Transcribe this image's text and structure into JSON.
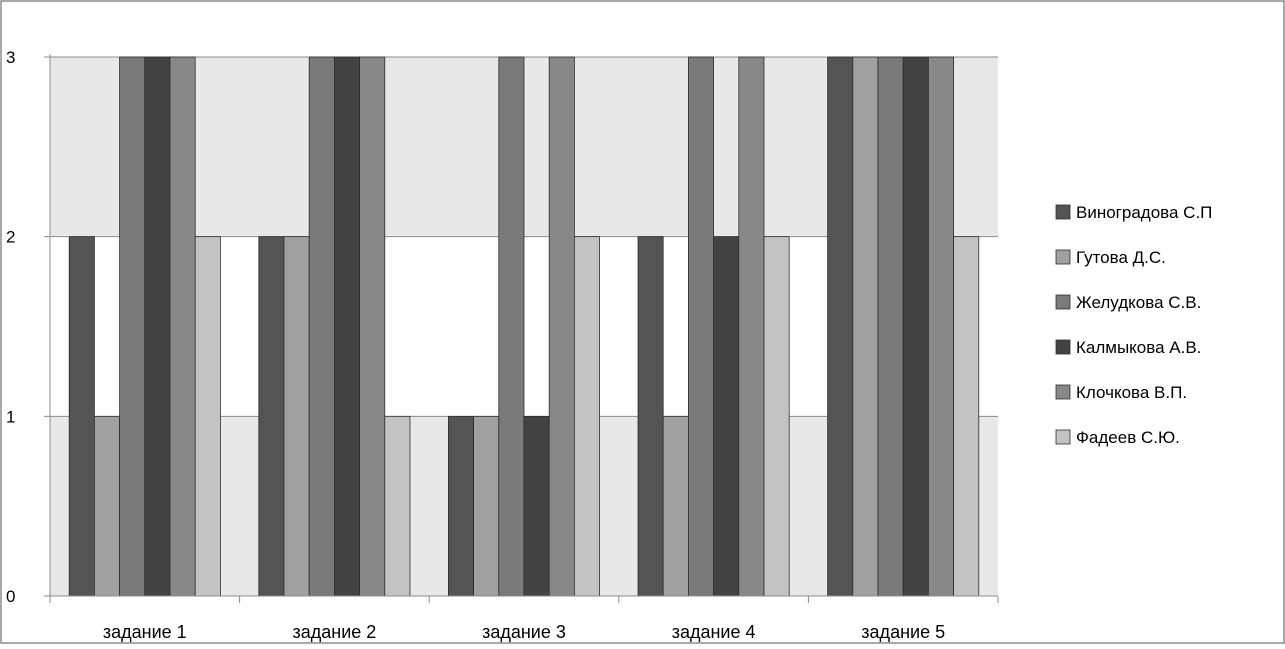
{
  "chart_data": {
    "type": "bar",
    "categories": [
      "задание 1",
      "задание 2",
      "задание 3",
      "задание 4",
      "задание 5"
    ],
    "series": [
      {
        "name": "Виноградова С.П",
        "values": [
          2,
          2,
          1,
          2,
          3
        ],
        "color": "#545454"
      },
      {
        "name": "Гутова Д.С.",
        "values": [
          1,
          2,
          1,
          1,
          3
        ],
        "color": "#a0a0a0"
      },
      {
        "name": "Желудкова С.В.",
        "values": [
          3,
          3,
          3,
          3,
          3
        ],
        "color": "#7a7a7a"
      },
      {
        "name": "Калмыкова А.В.",
        "values": [
          3,
          3,
          1,
          2,
          3
        ],
        "color": "#434343"
      },
      {
        "name": "Клочкова В.П.",
        "values": [
          3,
          3,
          3,
          3,
          3
        ],
        "color": "#888888"
      },
      {
        "name": "Фадеев С.Ю.",
        "values": [
          2,
          1,
          2,
          2,
          2
        ],
        "color": "#c3c3c3"
      }
    ],
    "y_ticks": [
      "0",
      "1",
      "2",
      "3"
    ],
    "ylim": [
      0,
      3
    ],
    "grid": true,
    "legend_position": "right",
    "plot_bands": [
      "#e8e8e8",
      "#ffffff"
    ]
  }
}
